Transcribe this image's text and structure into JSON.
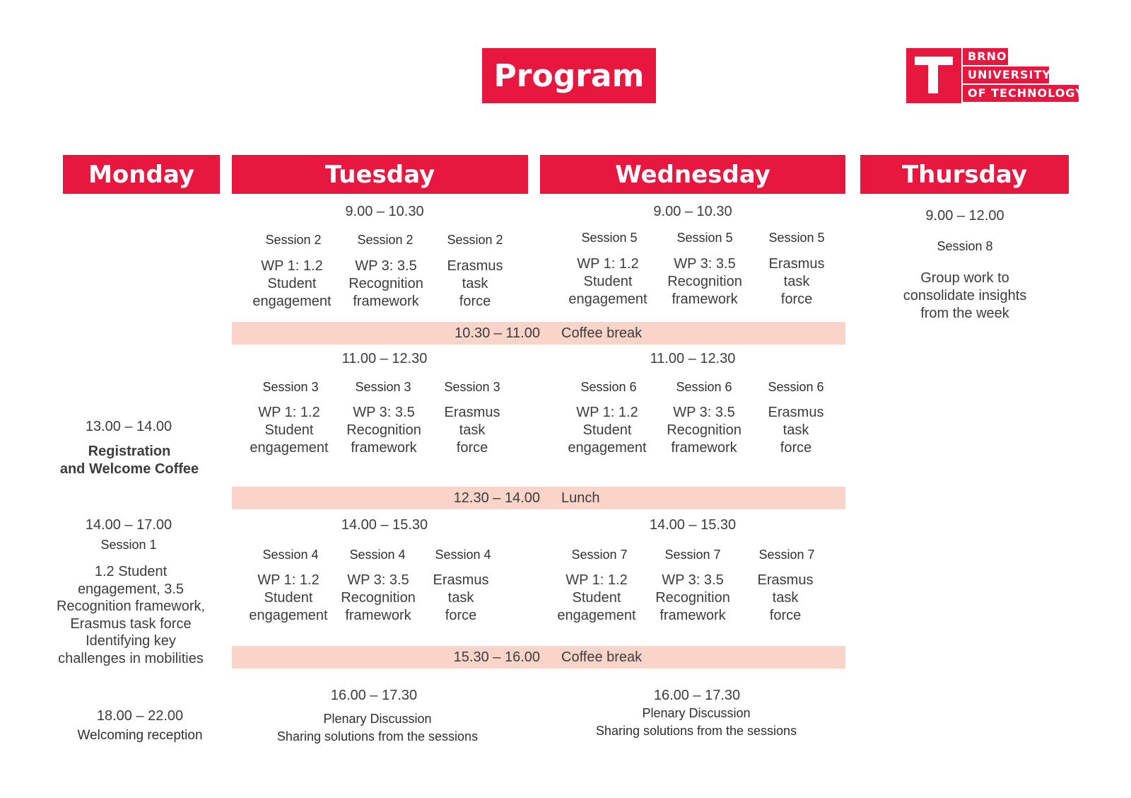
{
  "title": "Program",
  "logo": {
    "lines": [
      "BRNO",
      "UNIVERSITY",
      "OF TECHNOLOGY"
    ],
    "icon": "vut-t-logo",
    "color": "#e8173f"
  },
  "colors": {
    "accent": "#e8173f",
    "break_band": "#fbd4c9"
  },
  "days": {
    "monday": "Monday",
    "tuesday": "Tuesday",
    "wednesday": "Wednesday",
    "thursday": "Thursday"
  },
  "monday": {
    "reg_time": "13.00 – 14.00",
    "reg_title_line1": "Registration",
    "reg_title_line2": "and Welcome Coffee",
    "s1_time": "14.00 – 17.00",
    "s1_label": "Session 1",
    "s1_lines": [
      "1.2 Student",
      "engagement, 3.5",
      "Recognition framework,",
      "Erasmus task force",
      "Identifying key",
      "challenges in mobilities"
    ],
    "rec_time": "18.00 – 22.00",
    "rec_label": "Welcoming reception"
  },
  "tuesday": {
    "block1_time": "9.00 – 10.30",
    "block1": [
      {
        "label": "Session 2",
        "lines": [
          "WP 1: 1.2",
          "Student",
          "engagement"
        ]
      },
      {
        "label": "Session 2",
        "lines": [
          "WP 3: 3.5",
          "Recognition",
          "framework"
        ]
      },
      {
        "label": "Session 2",
        "lines": [
          "Erasmus",
          "task",
          "force"
        ]
      }
    ],
    "block2_time": "11.00 – 12.30",
    "block2": [
      {
        "label": "Session 3",
        "lines": [
          "WP 1: 1.2",
          "Student",
          "engagement"
        ]
      },
      {
        "label": "Session 3",
        "lines": [
          "WP 3: 3.5",
          "Recognition",
          "framework"
        ]
      },
      {
        "label": "Session 3",
        "lines": [
          "Erasmus",
          "task",
          "force"
        ]
      }
    ],
    "block3_time": "14.00 – 15.30",
    "block3": [
      {
        "label": "Session 4",
        "lines": [
          "WP 1: 1.2",
          "Student",
          "engagement"
        ]
      },
      {
        "label": "Session 4",
        "lines": [
          "WP 3: 3.5",
          "Recognition",
          "framework"
        ]
      },
      {
        "label": "Session 4",
        "lines": [
          "Erasmus",
          "task",
          "force"
        ]
      }
    ],
    "plenary_time": "16.00 – 17.30",
    "plenary_title": "Plenary Discussion",
    "plenary_sub": "Sharing solutions from the sessions"
  },
  "wednesday": {
    "block1_time": "9.00 – 10.30",
    "block1": [
      {
        "label": "Session 5",
        "lines": [
          "WP 1: 1.2",
          "Student",
          "engagement"
        ]
      },
      {
        "label": "Session 5",
        "lines": [
          "WP 3: 3.5",
          "Recognition",
          "framework"
        ]
      },
      {
        "label": "Session 5",
        "lines": [
          "Erasmus",
          "task",
          "force"
        ]
      }
    ],
    "block2_time": "11.00 – 12.30",
    "block2": [
      {
        "label": "Session 6",
        "lines": [
          "WP 1: 1.2",
          "Student",
          "engagement"
        ]
      },
      {
        "label": "Session 6",
        "lines": [
          "WP 3: 3.5",
          "Recognition",
          "framework"
        ]
      },
      {
        "label": "Session 6",
        "lines": [
          "Erasmus",
          "task",
          "force"
        ]
      }
    ],
    "block3_time": "14.00 – 15.30",
    "block3": [
      {
        "label": "Session 7",
        "lines": [
          "WP 1: 1.2",
          "Student",
          "engagement"
        ]
      },
      {
        "label": "Session 7",
        "lines": [
          "WP 3: 3.5",
          "Recognition",
          "framework"
        ]
      },
      {
        "label": "Session 7",
        "lines": [
          "Erasmus",
          "task",
          "force"
        ]
      }
    ],
    "plenary_time": "16.00 – 17.30",
    "plenary_title": "Plenary Discussion",
    "plenary_sub": "Sharing solutions from the sessions"
  },
  "thursday": {
    "time": "9.00 – 12.00",
    "label": "Session 8",
    "lines": [
      "Group work to",
      "consolidate insights",
      "from the week"
    ]
  },
  "breaks": {
    "coffee1_time": "10.30 – 11.00",
    "coffee1_label": "Coffee break",
    "lunch_time": "12.30 – 14.00",
    "lunch_label": "Lunch",
    "coffee2_time": "15.30 – 16.00",
    "coffee2_label": "Coffee break"
  }
}
